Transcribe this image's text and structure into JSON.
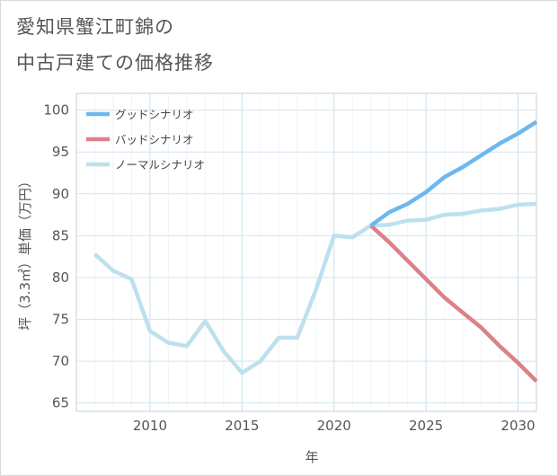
{
  "title_lines": [
    "愛知県蟹江町錦の",
    "中古戸建ての価格推移"
  ],
  "chart_data": {
    "type": "line",
    "xlabel": "年",
    "ylabel": "坪（3.3㎡）単価（万円）",
    "xlim": [
      2006,
      2031
    ],
    "ylim": [
      64,
      102
    ],
    "x_ticks": [
      2010,
      2015,
      2020,
      2025,
      2030
    ],
    "y_ticks": [
      65,
      70,
      75,
      80,
      85,
      90,
      95,
      100
    ],
    "grid": true,
    "legend_position": "top-left",
    "series": [
      {
        "name": "グッドシナリオ",
        "color": "#6cb8ee",
        "x": [
          2022,
          2023,
          2024,
          2025,
          2026,
          2027,
          2028,
          2029,
          2030,
          2031
        ],
        "values": [
          86.2,
          87.8,
          88.8,
          90.2,
          92.0,
          93.2,
          94.6,
          96.0,
          97.2,
          98.6
        ]
      },
      {
        "name": "バッドシナリオ",
        "color": "#dd8088",
        "x": [
          2022,
          2023,
          2024,
          2025,
          2026,
          2027,
          2028,
          2029,
          2030,
          2031
        ],
        "values": [
          86.2,
          84.2,
          82.0,
          79.8,
          77.6,
          75.8,
          74.0,
          71.8,
          69.8,
          67.6
        ]
      },
      {
        "name": "ノーマルシナリオ",
        "color": "#bde0ee",
        "x": [
          2007,
          2008,
          2009,
          2010,
          2011,
          2012,
          2013,
          2014,
          2015,
          2016,
          2017,
          2018,
          2019,
          2020,
          2021,
          2022,
          2023,
          2024,
          2025,
          2026,
          2027,
          2028,
          2029,
          2030,
          2031
        ],
        "values": [
          82.8,
          80.8,
          79.8,
          73.6,
          72.2,
          71.8,
          74.8,
          71.2,
          68.6,
          70.0,
          72.8,
          72.8,
          78.4,
          85.0,
          84.8,
          86.2,
          86.3,
          86.8,
          86.9,
          87.5,
          87.6,
          88.0,
          88.2,
          88.7,
          88.8
        ]
      }
    ]
  }
}
